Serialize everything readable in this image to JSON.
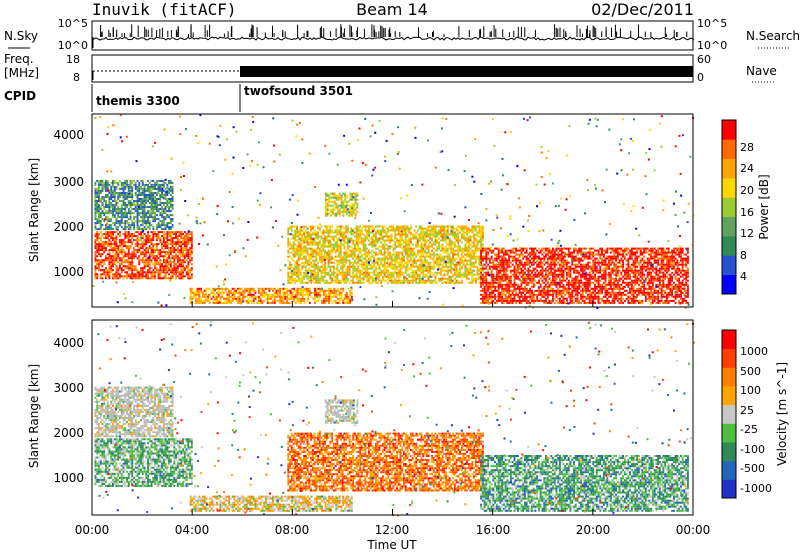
{
  "header": {
    "station": "Inuvik (fitACF)",
    "beam": "Beam 14",
    "date": "02/Dec/2011"
  },
  "noise_panel": {
    "left_label": "N.Sky",
    "right_label": "N.Search",
    "left_ticks": [
      "10^5",
      "10^0"
    ],
    "right_ticks": [
      "10^5",
      "10^0"
    ]
  },
  "freq_panel": {
    "left_label_line1": "Freq.",
    "left_label_line2": "[MHz]",
    "right_label": "Nave",
    "left_ticks": [
      "18",
      "8"
    ],
    "right_ticks": [
      "60",
      "0"
    ]
  },
  "cpid_panel": {
    "label": "CPID",
    "programs": [
      {
        "name": "themis 3300",
        "start_hour": 0,
        "end_hour": 6
      },
      {
        "name": "twofsound 3501",
        "start_hour": 6,
        "end_hour": 24
      }
    ]
  },
  "colors": {
    "power_scale": [
      "#0000ff",
      "#2850d2",
      "#2e8b57",
      "#5fa35f",
      "#9acd32",
      "#ffd700",
      "#ffa500",
      "#ff6a00",
      "#ff0000"
    ],
    "velocity_scale": [
      "#1e32c8",
      "#2266bb",
      "#2e8b57",
      "#4fbf3f",
      "#c8c8c8",
      "#ffa500",
      "#ff8000",
      "#ff4000",
      "#ff0000"
    ],
    "velocity_ground_scatter": "#b8b8b8"
  },
  "chart_data": [
    {
      "type": "heatmap",
      "name": "power",
      "ylabel": "Slant Range [km]",
      "colorbar_label": "Power [dB]",
      "ylim": [
        180,
        4500
      ],
      "y_ticks": [
        "4000",
        "3000",
        "2000",
        "1000"
      ],
      "colorbar_ticks": [
        "28",
        "24",
        "20",
        "16",
        "12",
        "8",
        "4"
      ],
      "colorbar_range": [
        0,
        32
      ],
      "grid": false,
      "regions": [
        {
          "t0": 0.1,
          "t1": 4.0,
          "r0": 800,
          "r1": 1850,
          "value": 28
        },
        {
          "t0": 3.9,
          "t1": 10.4,
          "r0": 250,
          "r1": 600,
          "value": 24
        },
        {
          "t0": 7.8,
          "t1": 15.6,
          "r0": 700,
          "r1": 2000,
          "value": 20
        },
        {
          "t0": 15.5,
          "t1": 23.8,
          "r0": 250,
          "r1": 1500,
          "value": 30
        },
        {
          "t0": 0.1,
          "t1": 3.2,
          "r0": 1900,
          "r1": 3000,
          "value": 10
        },
        {
          "t0": 9.3,
          "t1": 10.6,
          "r0": 2200,
          "r1": 2700,
          "value": 18
        }
      ]
    },
    {
      "type": "heatmap",
      "name": "velocity",
      "ylabel": "Slant Range [km]",
      "colorbar_label": "Velocity [m s^-1]",
      "ylim": [
        180,
        4500
      ],
      "y_ticks": [
        "4000",
        "3000",
        "2000",
        "1000"
      ],
      "colorbar_ticks": [
        "1000",
        "500",
        "100",
        "25",
        "-25",
        "-100",
        "-500",
        "-1000"
      ],
      "colorbar_range": [
        -1200,
        1200
      ],
      "grid": false,
      "regions": [
        {
          "t0": 0.1,
          "t1": 4.0,
          "r0": 800,
          "r1": 1850,
          "value": -300
        },
        {
          "t0": 3.9,
          "t1": 10.4,
          "r0": 250,
          "r1": 600,
          "value": 150
        },
        {
          "t0": 7.8,
          "t1": 15.6,
          "r0": 700,
          "r1": 2000,
          "value": 600
        },
        {
          "t0": 15.5,
          "t1": 23.8,
          "r0": 250,
          "r1": 1500,
          "value": -400
        },
        {
          "t0": 0.1,
          "t1": 3.2,
          "r0": 1900,
          "r1": 3000,
          "value": 0
        },
        {
          "t0": 9.3,
          "t1": 10.6,
          "r0": 2200,
          "r1": 2700,
          "value": 0
        }
      ]
    }
  ],
  "x_axis": {
    "label": "Time UT",
    "ticks": [
      "00:00",
      "04:00",
      "08:00",
      "12:00",
      "16:00",
      "20:00",
      "00:00"
    ],
    "xlim_hours": [
      0,
      24
    ]
  }
}
